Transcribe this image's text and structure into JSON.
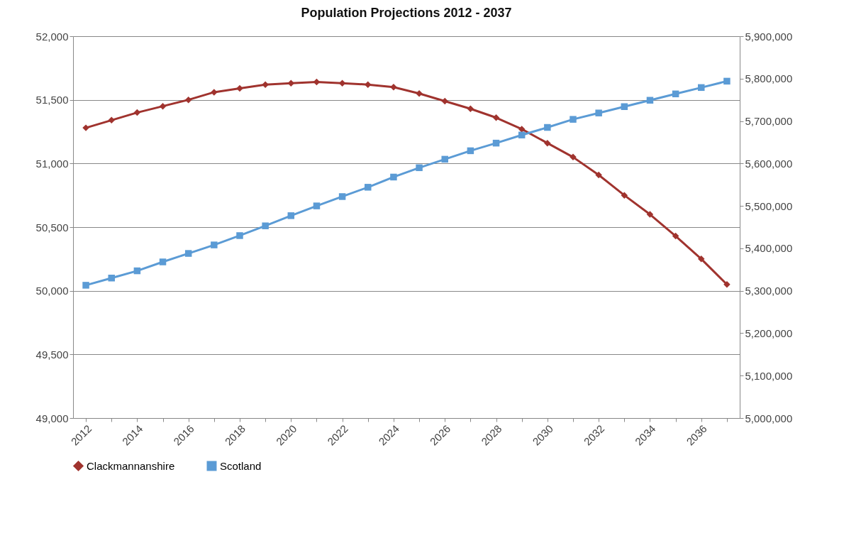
{
  "chart_data": {
    "type": "line",
    "title": "Population Projections 2012 - 2037",
    "categories": [
      "2012",
      null,
      "2014",
      null,
      "2016",
      null,
      "2018",
      null,
      "2020",
      null,
      "2022",
      null,
      "2024",
      null,
      "2026",
      null,
      "2028",
      null,
      "2030",
      null,
      "2032",
      null,
      "2034",
      null,
      "2036",
      null
    ],
    "series": [
      {
        "name": "Clackmannanshire",
        "color": "#a0332e",
        "marker": "diamond",
        "values": [
          51280,
          51340,
          51400,
          51450,
          51500,
          51560,
          51590,
          51620,
          51630,
          51640,
          51630,
          51620,
          51600,
          51550,
          51490,
          51430,
          51360,
          51270,
          51160,
          51050,
          50910,
          50750,
          50600,
          50430,
          50250,
          50050
        ]
      },
      {
        "name": "Scotland",
        "color": "#5b9bd5",
        "marker": "square",
        "axis": "y2",
        "values": [
          5313000,
          5330000,
          5347000,
          5368000,
          5388000,
          5408000,
          5430000,
          5453000,
          5477000,
          5500000,
          5522000,
          5544000,
          5568000,
          5590000,
          5610000,
          5630000,
          5648000,
          5667000,
          5685000,
          5704000,
          5719000,
          5734000,
          5749000,
          5764000,
          5779000,
          5794000
        ]
      }
    ],
    "ylim": [
      49000,
      52000
    ],
    "yticks": [
      {
        "value": 49000,
        "label": "49,000"
      },
      {
        "value": 49500,
        "label": "49,500"
      },
      {
        "value": 50000,
        "label": "50,000"
      },
      {
        "value": 50500,
        "label": "50,500"
      },
      {
        "value": 51000,
        "label": "51,000"
      },
      {
        "value": 51500,
        "label": "51,500"
      },
      {
        "value": 52000,
        "label": "52,000"
      }
    ],
    "y2lim": [
      5000000,
      5900000
    ],
    "y2ticks": [
      {
        "value": 5000000,
        "label": "5,000,000"
      },
      {
        "value": 5100000,
        "label": "5,100,000"
      },
      {
        "value": 5200000,
        "label": "5,200,000"
      },
      {
        "value": 5300000,
        "label": "5,300,000"
      },
      {
        "value": 5400000,
        "label": "5,400,000"
      },
      {
        "value": 5500000,
        "label": "5,500,000"
      },
      {
        "value": 5600000,
        "label": "5,600,000"
      },
      {
        "value": 5700000,
        "label": "5,700,000"
      },
      {
        "value": 5800000,
        "label": "5,800,000"
      },
      {
        "value": 5900000,
        "label": "5,900,000"
      }
    ],
    "grid": "y",
    "legend": "bottom"
  }
}
